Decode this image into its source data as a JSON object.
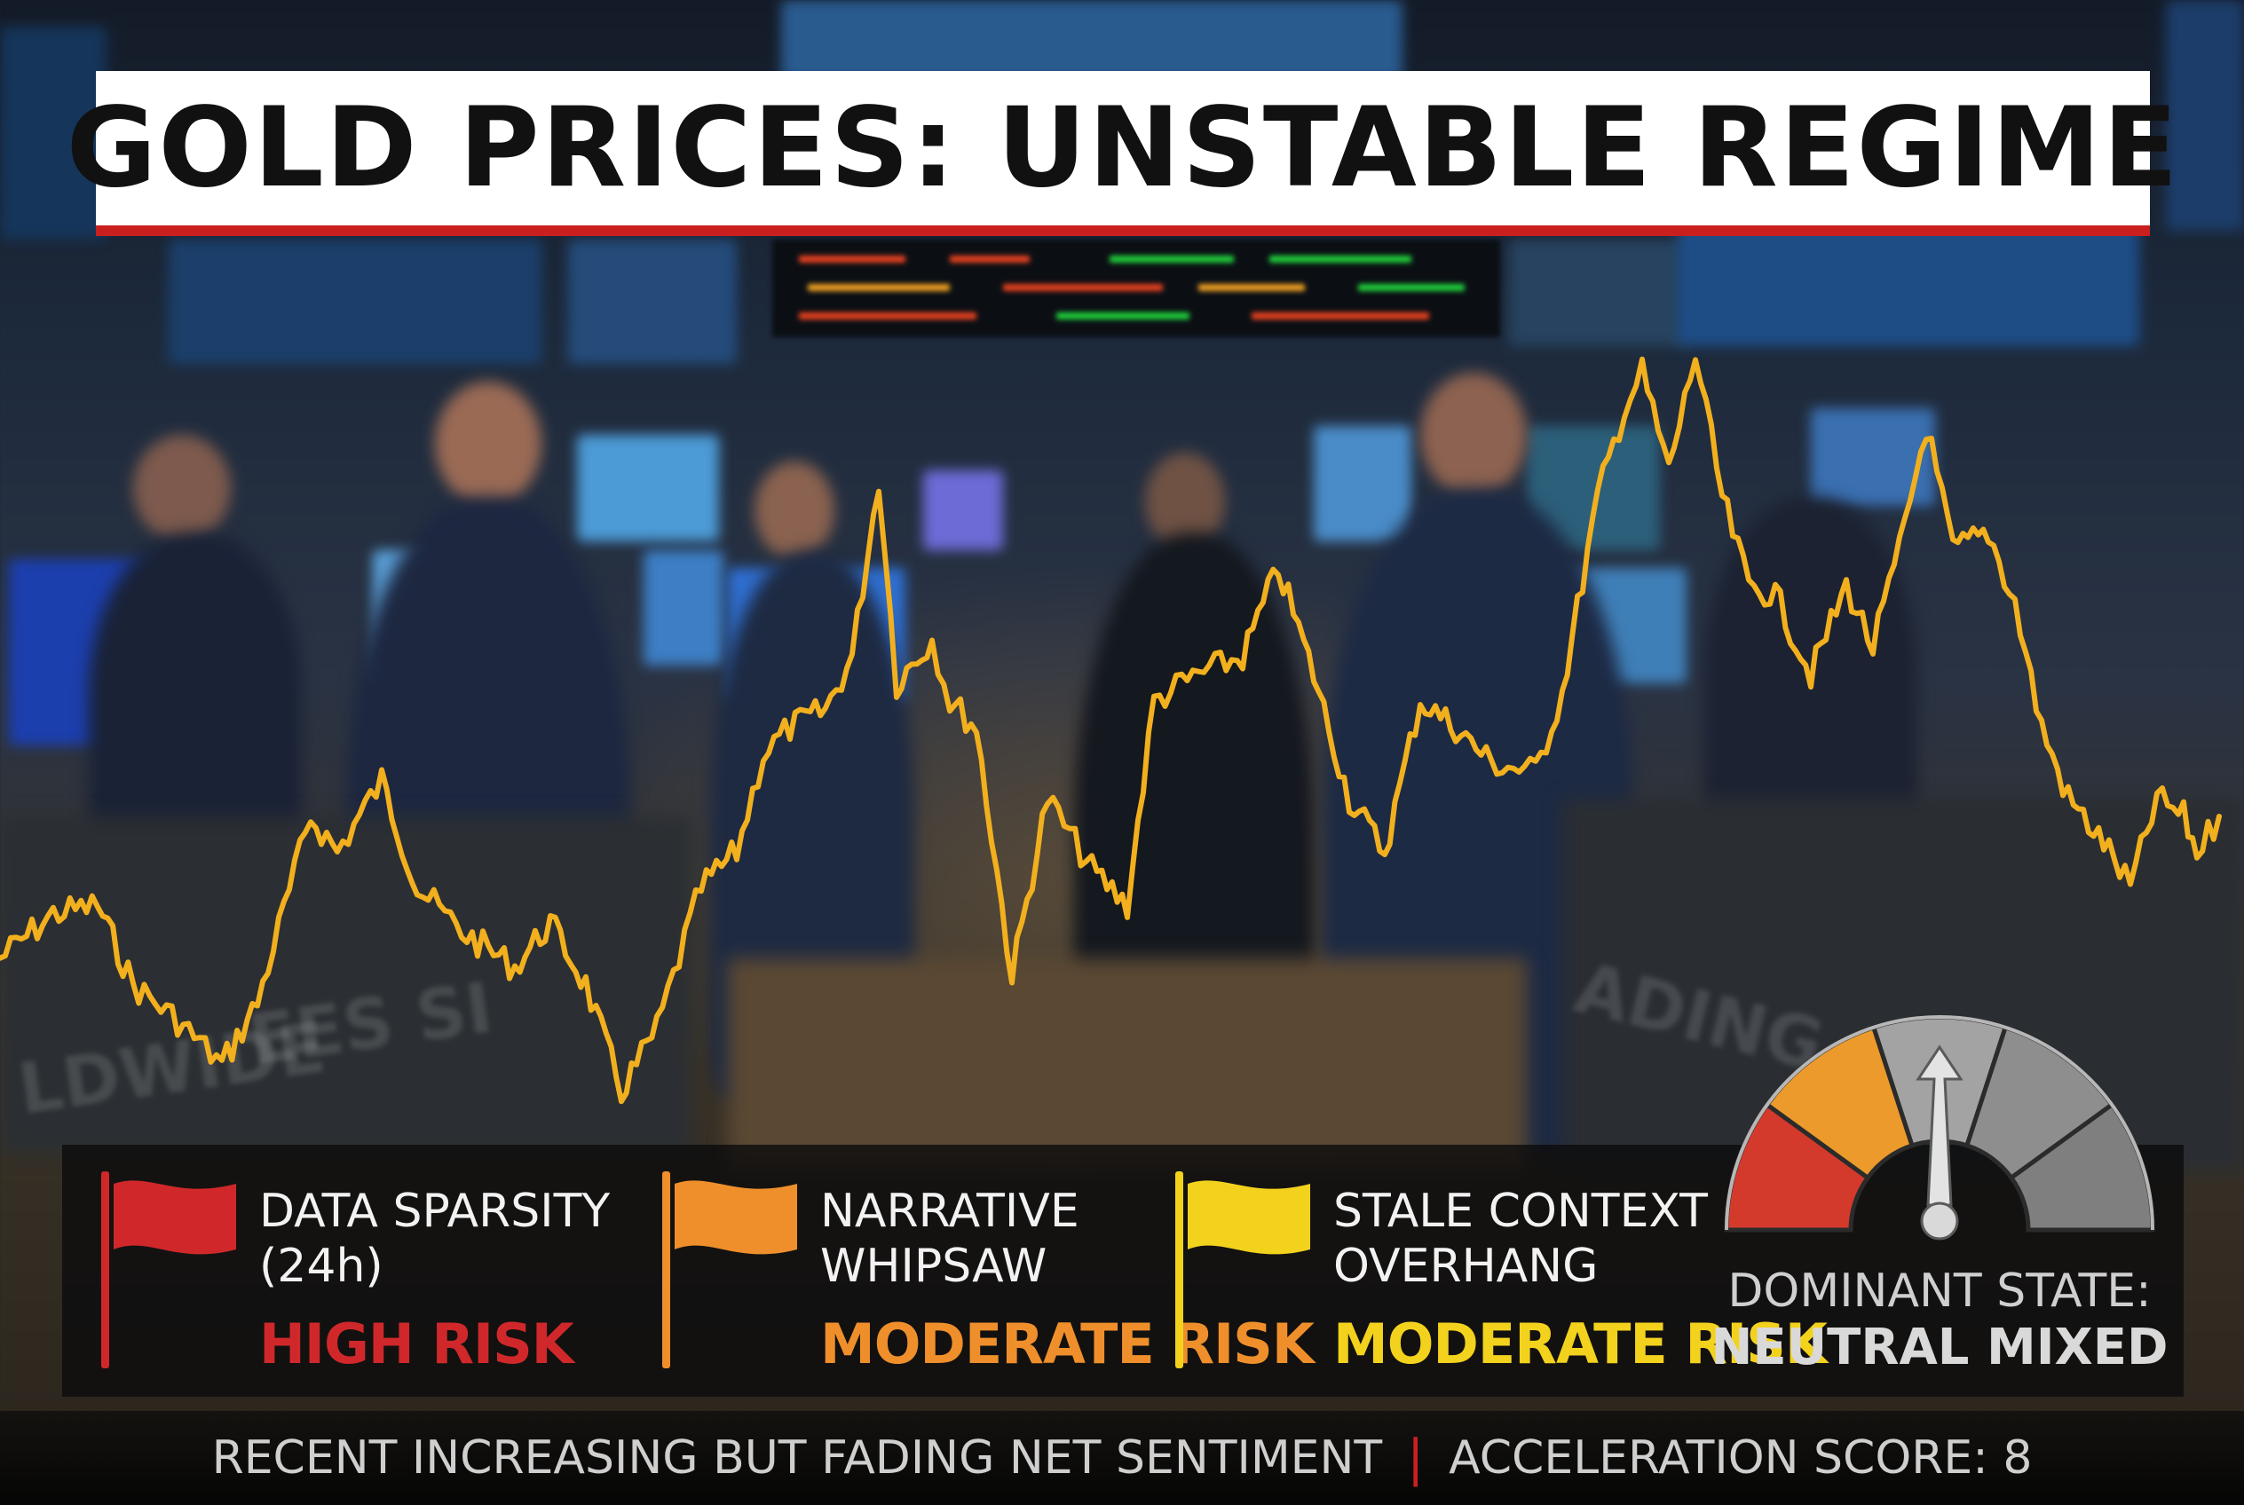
{
  "title": "GOLD PRICES: UNSTABLE REGIME",
  "colors": {
    "title_rule": "#c9201f",
    "price_line": "#f2b01e",
    "high_risk": "#d0282a",
    "moderate_orange": "#ef8f2b",
    "moderate_yellow": "#f3d21d",
    "gauge_red": "#d43a2c",
    "gauge_orange": "#ec9a2b",
    "gauge_grey": "#9a9a9a"
  },
  "risk_factors": [
    {
      "label_line1": "DATA SPARSITY",
      "label_line2": "(24h)",
      "level": "HIGH RISK",
      "flag_color": "#d0282a",
      "icon": "red-flag-icon"
    },
    {
      "label_line1": "NARRATIVE",
      "label_line2": "WHIPSAW",
      "level": "MODERATE RISK",
      "flag_color": "#ef8f2b",
      "icon": "orange-flag-icon"
    },
    {
      "label_line1": "STALE CONTEXT",
      "label_line2": "OVERHANG",
      "level": "MODERATE RISK",
      "flag_color": "#f3d21d",
      "icon": "yellow-flag-icon"
    }
  ],
  "gauge": {
    "caption_line1": "DOMINANT STATE:",
    "caption_line2": "NEUTRAL MIXED",
    "segments": [
      "red",
      "orange",
      "grey",
      "grey",
      "grey"
    ],
    "needle_segment": "middle",
    "icon": "gauge-needle-icon"
  },
  "footer": {
    "sentiment": "RECENT INCREASING BUT FADING NET SENTIMENT",
    "separator": "|",
    "score": "ACCELERATION SCORE: 8"
  },
  "background_signage": [
    "LDWIDE",
    "EES SI",
    "ADING CO"
  ]
}
